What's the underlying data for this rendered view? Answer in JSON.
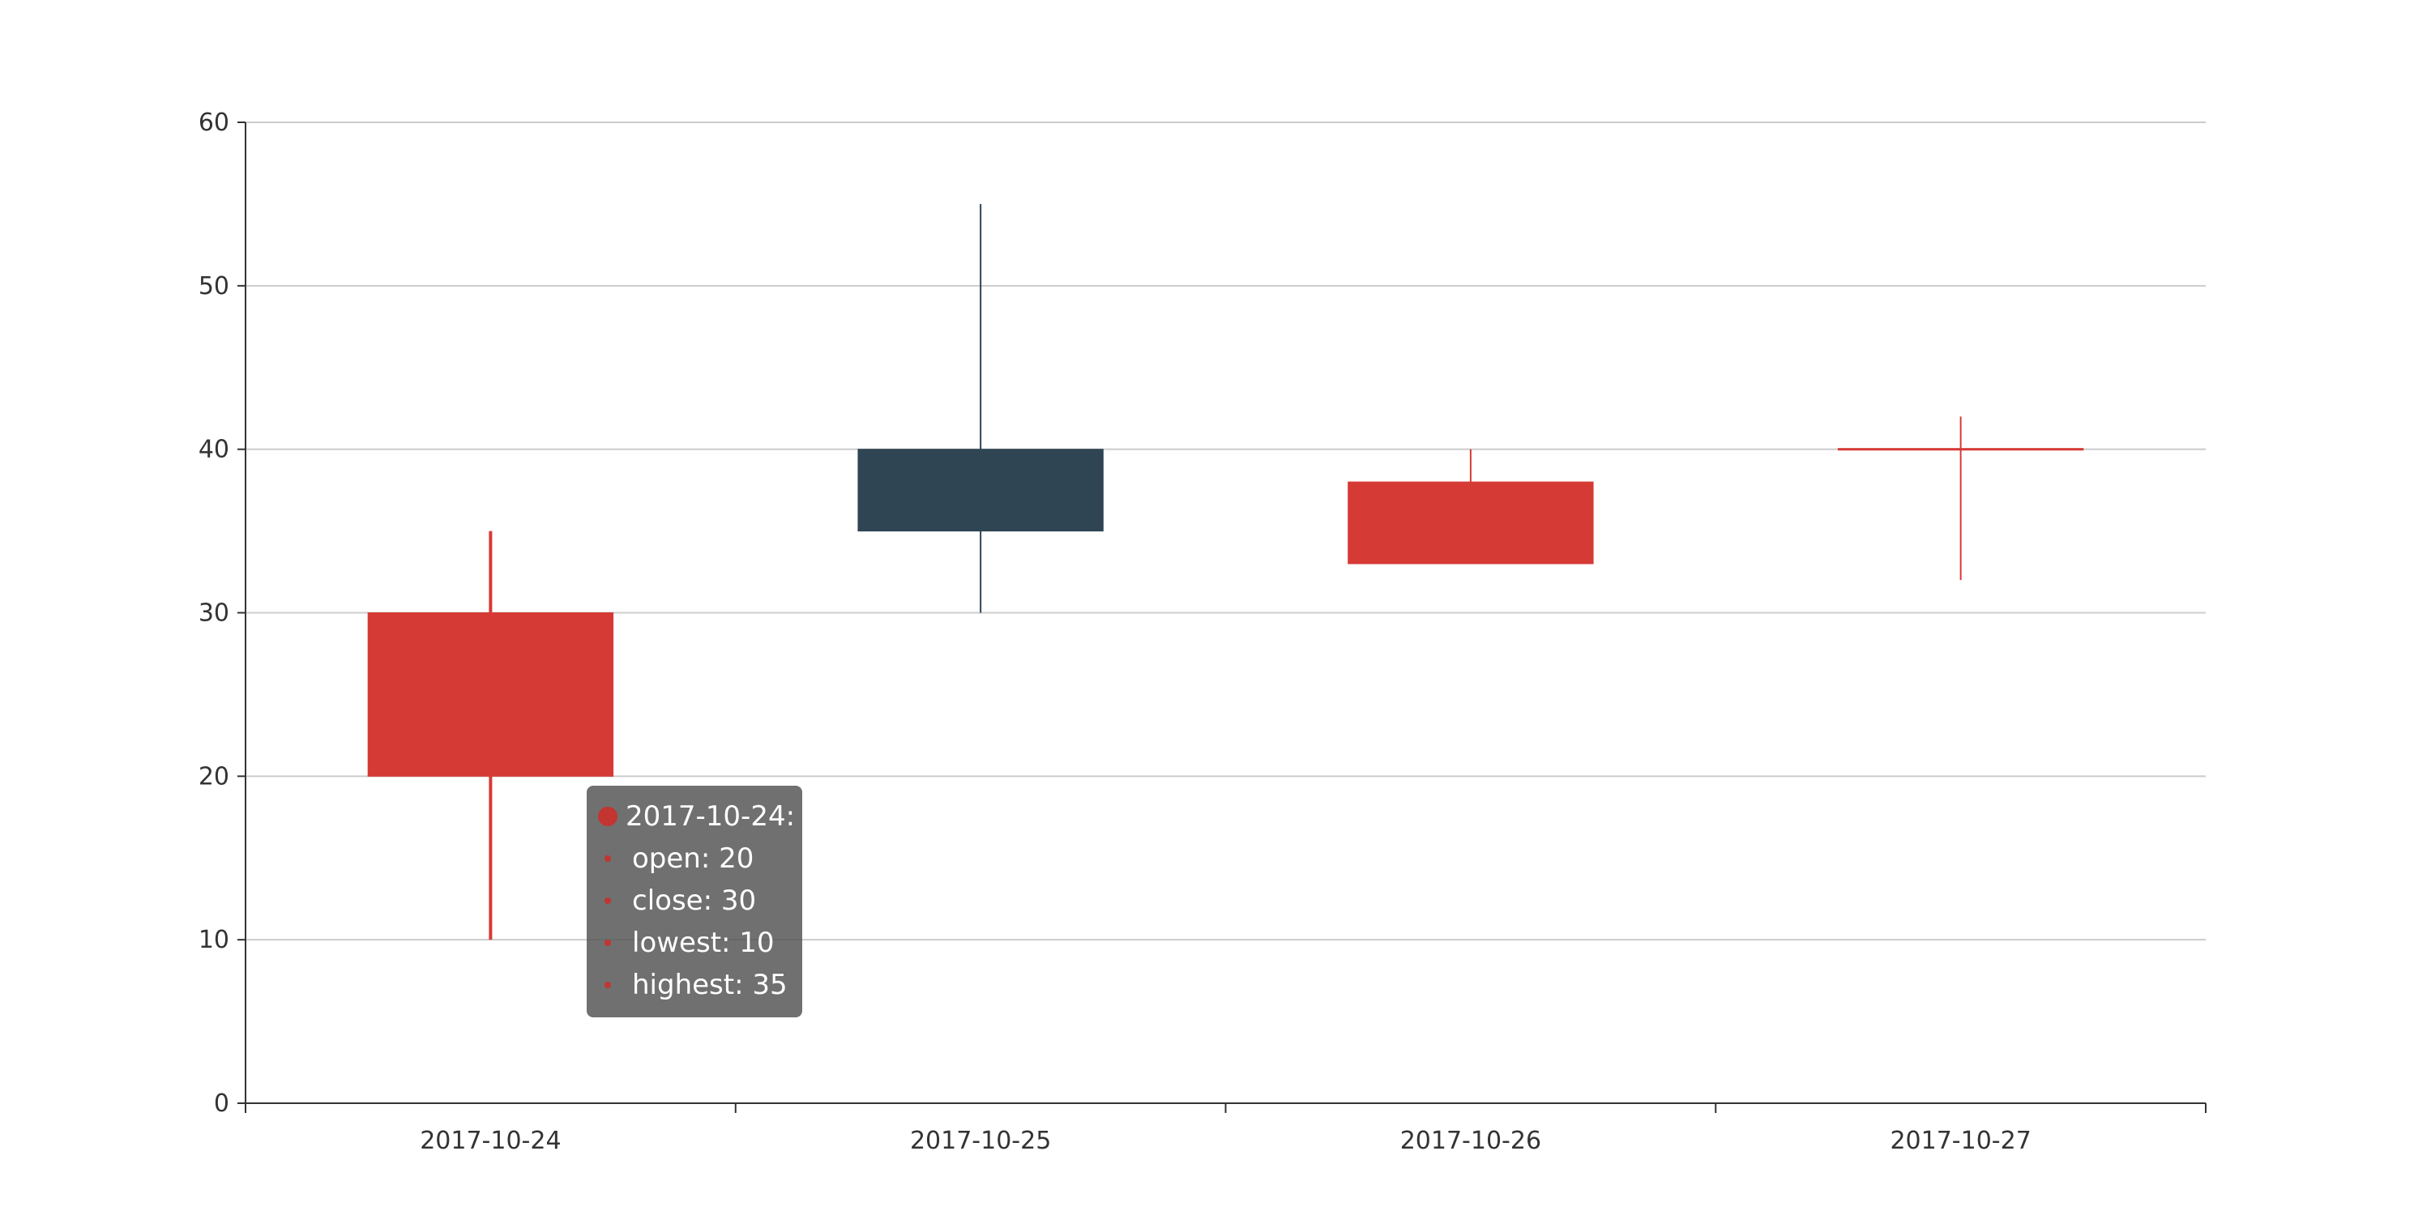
{
  "chart_data": {
    "type": "candlestick",
    "categories": [
      "2017-10-24",
      "2017-10-25",
      "2017-10-26",
      "2017-10-27"
    ],
    "series": [
      {
        "values": [
          {
            "open": 20,
            "close": 30,
            "lowest": 10,
            "highest": 35
          },
          {
            "open": 40,
            "close": 35,
            "lowest": 30,
            "highest": 55
          },
          {
            "open": 33,
            "close": 38,
            "lowest": 33,
            "highest": 40
          },
          {
            "open": 40,
            "close": 40,
            "lowest": 32,
            "highest": 42
          }
        ]
      }
    ],
    "ylim": [
      0,
      60
    ],
    "yticks": [
      "0",
      "10",
      "20",
      "30",
      "40",
      "50",
      "60"
    ],
    "grid": true,
    "colors": {
      "up": "#d63a35",
      "down": "#2f4554",
      "axis": "#333333",
      "grid": "#cccccc"
    }
  },
  "tooltip": {
    "title": "2017-10-24:",
    "marker_color": "#c23531",
    "items": [
      {
        "label": "open: 20"
      },
      {
        "label": "close: 30"
      },
      {
        "label": "lowest: 10"
      },
      {
        "label": "highest: 35"
      }
    ]
  }
}
